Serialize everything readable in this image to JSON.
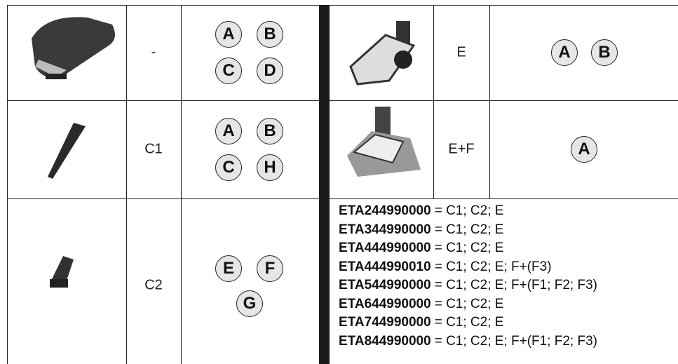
{
  "left_rows": [
    {
      "code": "-",
      "letters": [
        "A",
        "B",
        "C",
        "D"
      ]
    },
    {
      "code": "C1",
      "letters": [
        "A",
        "B",
        "C",
        "H"
      ]
    },
    {
      "code": "C2",
      "letters": [
        "E",
        "F",
        "G"
      ]
    }
  ],
  "right_rows": [
    {
      "code": "E",
      "letters": [
        "A",
        "B"
      ]
    },
    {
      "code": "E+F",
      "letters": [
        "A"
      ]
    }
  ],
  "models": [
    {
      "model": "ETA244990000",
      "parts": "= C1; C2; E"
    },
    {
      "model": "ETA344990000",
      "parts": "= C1; C2; E"
    },
    {
      "model": "ETA444990000",
      "parts": "= C1; C2; E"
    },
    {
      "model": "ETA444990010",
      "parts": "= C1; C2; E; F+(F3)"
    },
    {
      "model": "ETA544990000",
      "parts": "= C1; C2; E; F+(F1; F2; F3)"
    },
    {
      "model": "ETA644990000",
      "parts": "= C1; C2; E"
    },
    {
      "model": "ETA744990000",
      "parts": "= C1; C2; E"
    },
    {
      "model": "ETA844990000",
      "parts": "= C1; C2; E; F+(F1; F2; F3)"
    }
  ]
}
